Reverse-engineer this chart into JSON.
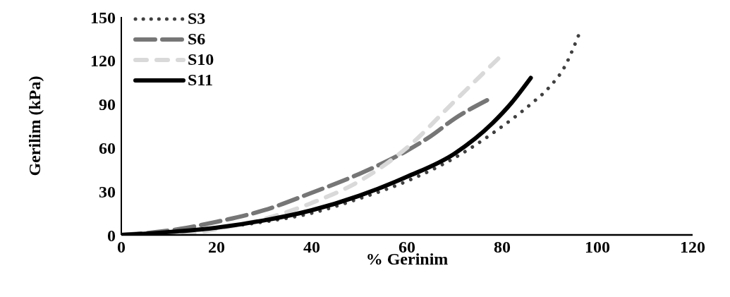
{
  "chart_data": {
    "type": "line",
    "xlabel": "% Gerinim",
    "ylabel": "Gerilim (kPa)",
    "xlim": [
      0,
      120
    ],
    "xticks": [
      0,
      20,
      40,
      60,
      80,
      100,
      120
    ],
    "ylim": [
      0,
      150
    ],
    "yticks": [
      0,
      30,
      60,
      90,
      120,
      150
    ],
    "grid": false,
    "legend": "top left",
    "marker": "none",
    "series": [
      {
        "name": "S3",
        "color": "#404040",
        "line_style": "dotted",
        "x": [
          0,
          10,
          20,
          30,
          40,
          50,
          60,
          70,
          78,
          86,
          90,
          93,
          96
        ],
        "values": [
          0,
          2,
          5,
          9,
          15,
          25,
          37,
          53,
          70,
          90,
          102,
          115,
          137
        ]
      },
      {
        "name": "S6",
        "color": "#767676",
        "line_style": "dashed",
        "x": [
          0,
          10,
          20,
          30,
          40,
          50,
          60,
          65,
          70,
          77
        ],
        "values": [
          0,
          3,
          9,
          17,
          29,
          42,
          58,
          68,
          80,
          93
        ]
      },
      {
        "name": "S10",
        "color": "#d9d9d9",
        "line_style": "dashed",
        "x": [
          13,
          20,
          30,
          40,
          50,
          60,
          70,
          80
        ],
        "values": [
          0,
          4,
          11,
          22,
          37,
          60,
          92,
          124
        ]
      },
      {
        "name": "S11",
        "color": "#000000",
        "line_style": "solid",
        "x": [
          0,
          10,
          20,
          30,
          40,
          50,
          60,
          70,
          78,
          82,
          86
        ],
        "values": [
          0,
          2,
          5,
          10,
          17,
          27,
          40,
          56,
          77,
          91,
          108
        ]
      }
    ]
  }
}
